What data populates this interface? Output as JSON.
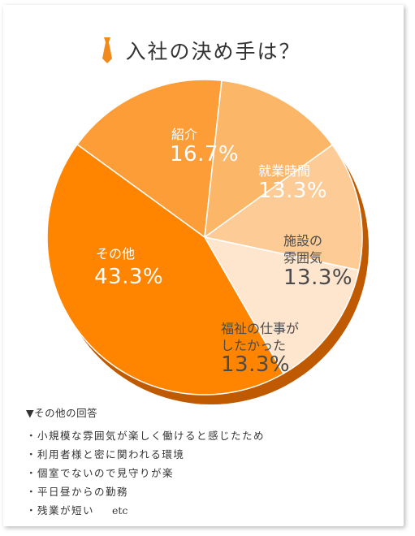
{
  "title": "入社の決め手は？",
  "colors": {
    "title_icon": "#f08a1e",
    "shadow": "#c05a00",
    "sliceColors": [
      "#ff8500",
      "#fc9d38",
      "#fcb668",
      "#fdcb96",
      "#fee5cd"
    ]
  },
  "chart_data": {
    "type": "pie",
    "title": "入社の決め手は？",
    "slices": [
      {
        "label": "その他",
        "value": 43.3,
        "display": "43.3%"
      },
      {
        "label": "紹介",
        "value": 16.7,
        "display": "16.7%"
      },
      {
        "label": "就業時間",
        "value": 13.3,
        "display": "13.3%"
      },
      {
        "label": "施設の雰囲気",
        "value": 13.3,
        "display": "13.3%"
      },
      {
        "label": "福祉の仕事がしたかった",
        "value": 13.3,
        "display": "13.3%"
      }
    ]
  },
  "labels": {
    "sono": "その他",
    "shokai": "紹介",
    "shugyo": "就業時間",
    "shisetsu_1": "施設の",
    "shisetsu_2": "雰囲気",
    "fukushi_1": "福祉の仕事が",
    "fukushi_2": "したかった"
  },
  "notes": {
    "heading": "▼その他の回答",
    "items": [
      "・小規模な雰囲気が楽しく働けると感じたため",
      "・利用者様と密に関われる環境",
      "・個室でないので見守りが楽",
      "・平日昼からの勤務",
      "・残業が短い"
    ],
    "etc": "etc"
  }
}
